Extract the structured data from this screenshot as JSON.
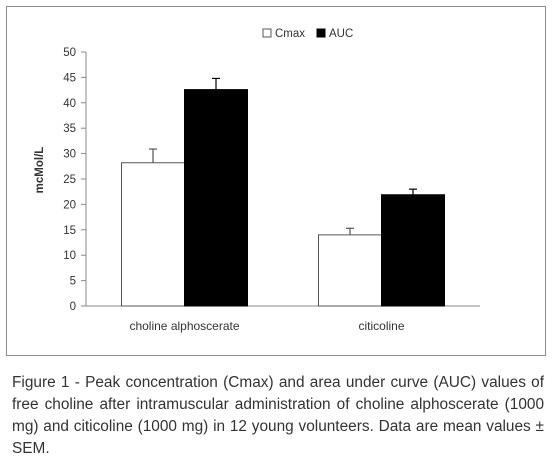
{
  "chart_data": {
    "type": "bar",
    "categories": [
      "choline alphoscerate",
      "citicoline"
    ],
    "series": [
      {
        "name": "Cmax",
        "values": [
          28.2,
          14.0
        ],
        "errors": [
          2.7,
          1.3
        ],
        "fill": "#ffffff",
        "stroke": "#555555"
      },
      {
        "name": "AUC",
        "values": [
          42.6,
          21.9
        ],
        "errors": [
          2.2,
          1.1
        ],
        "fill": "#000000",
        "stroke": "#000000"
      }
    ],
    "ylabel": "mcMol/L",
    "xlabel": "",
    "ylim": [
      0,
      50
    ],
    "yticks": [
      0,
      5,
      10,
      15,
      20,
      25,
      30,
      35,
      40,
      45,
      50
    ],
    "grid": false,
    "legend_position": "top-center"
  },
  "caption": "Figure 1 - Peak concentration (Cmax) and area under curve (AUC) values of free choline after intramuscular administration of choline alphoscerate (1000 mg) and citicoline (1000 mg) in 12 young volunteers. Data are mean values ± SEM."
}
